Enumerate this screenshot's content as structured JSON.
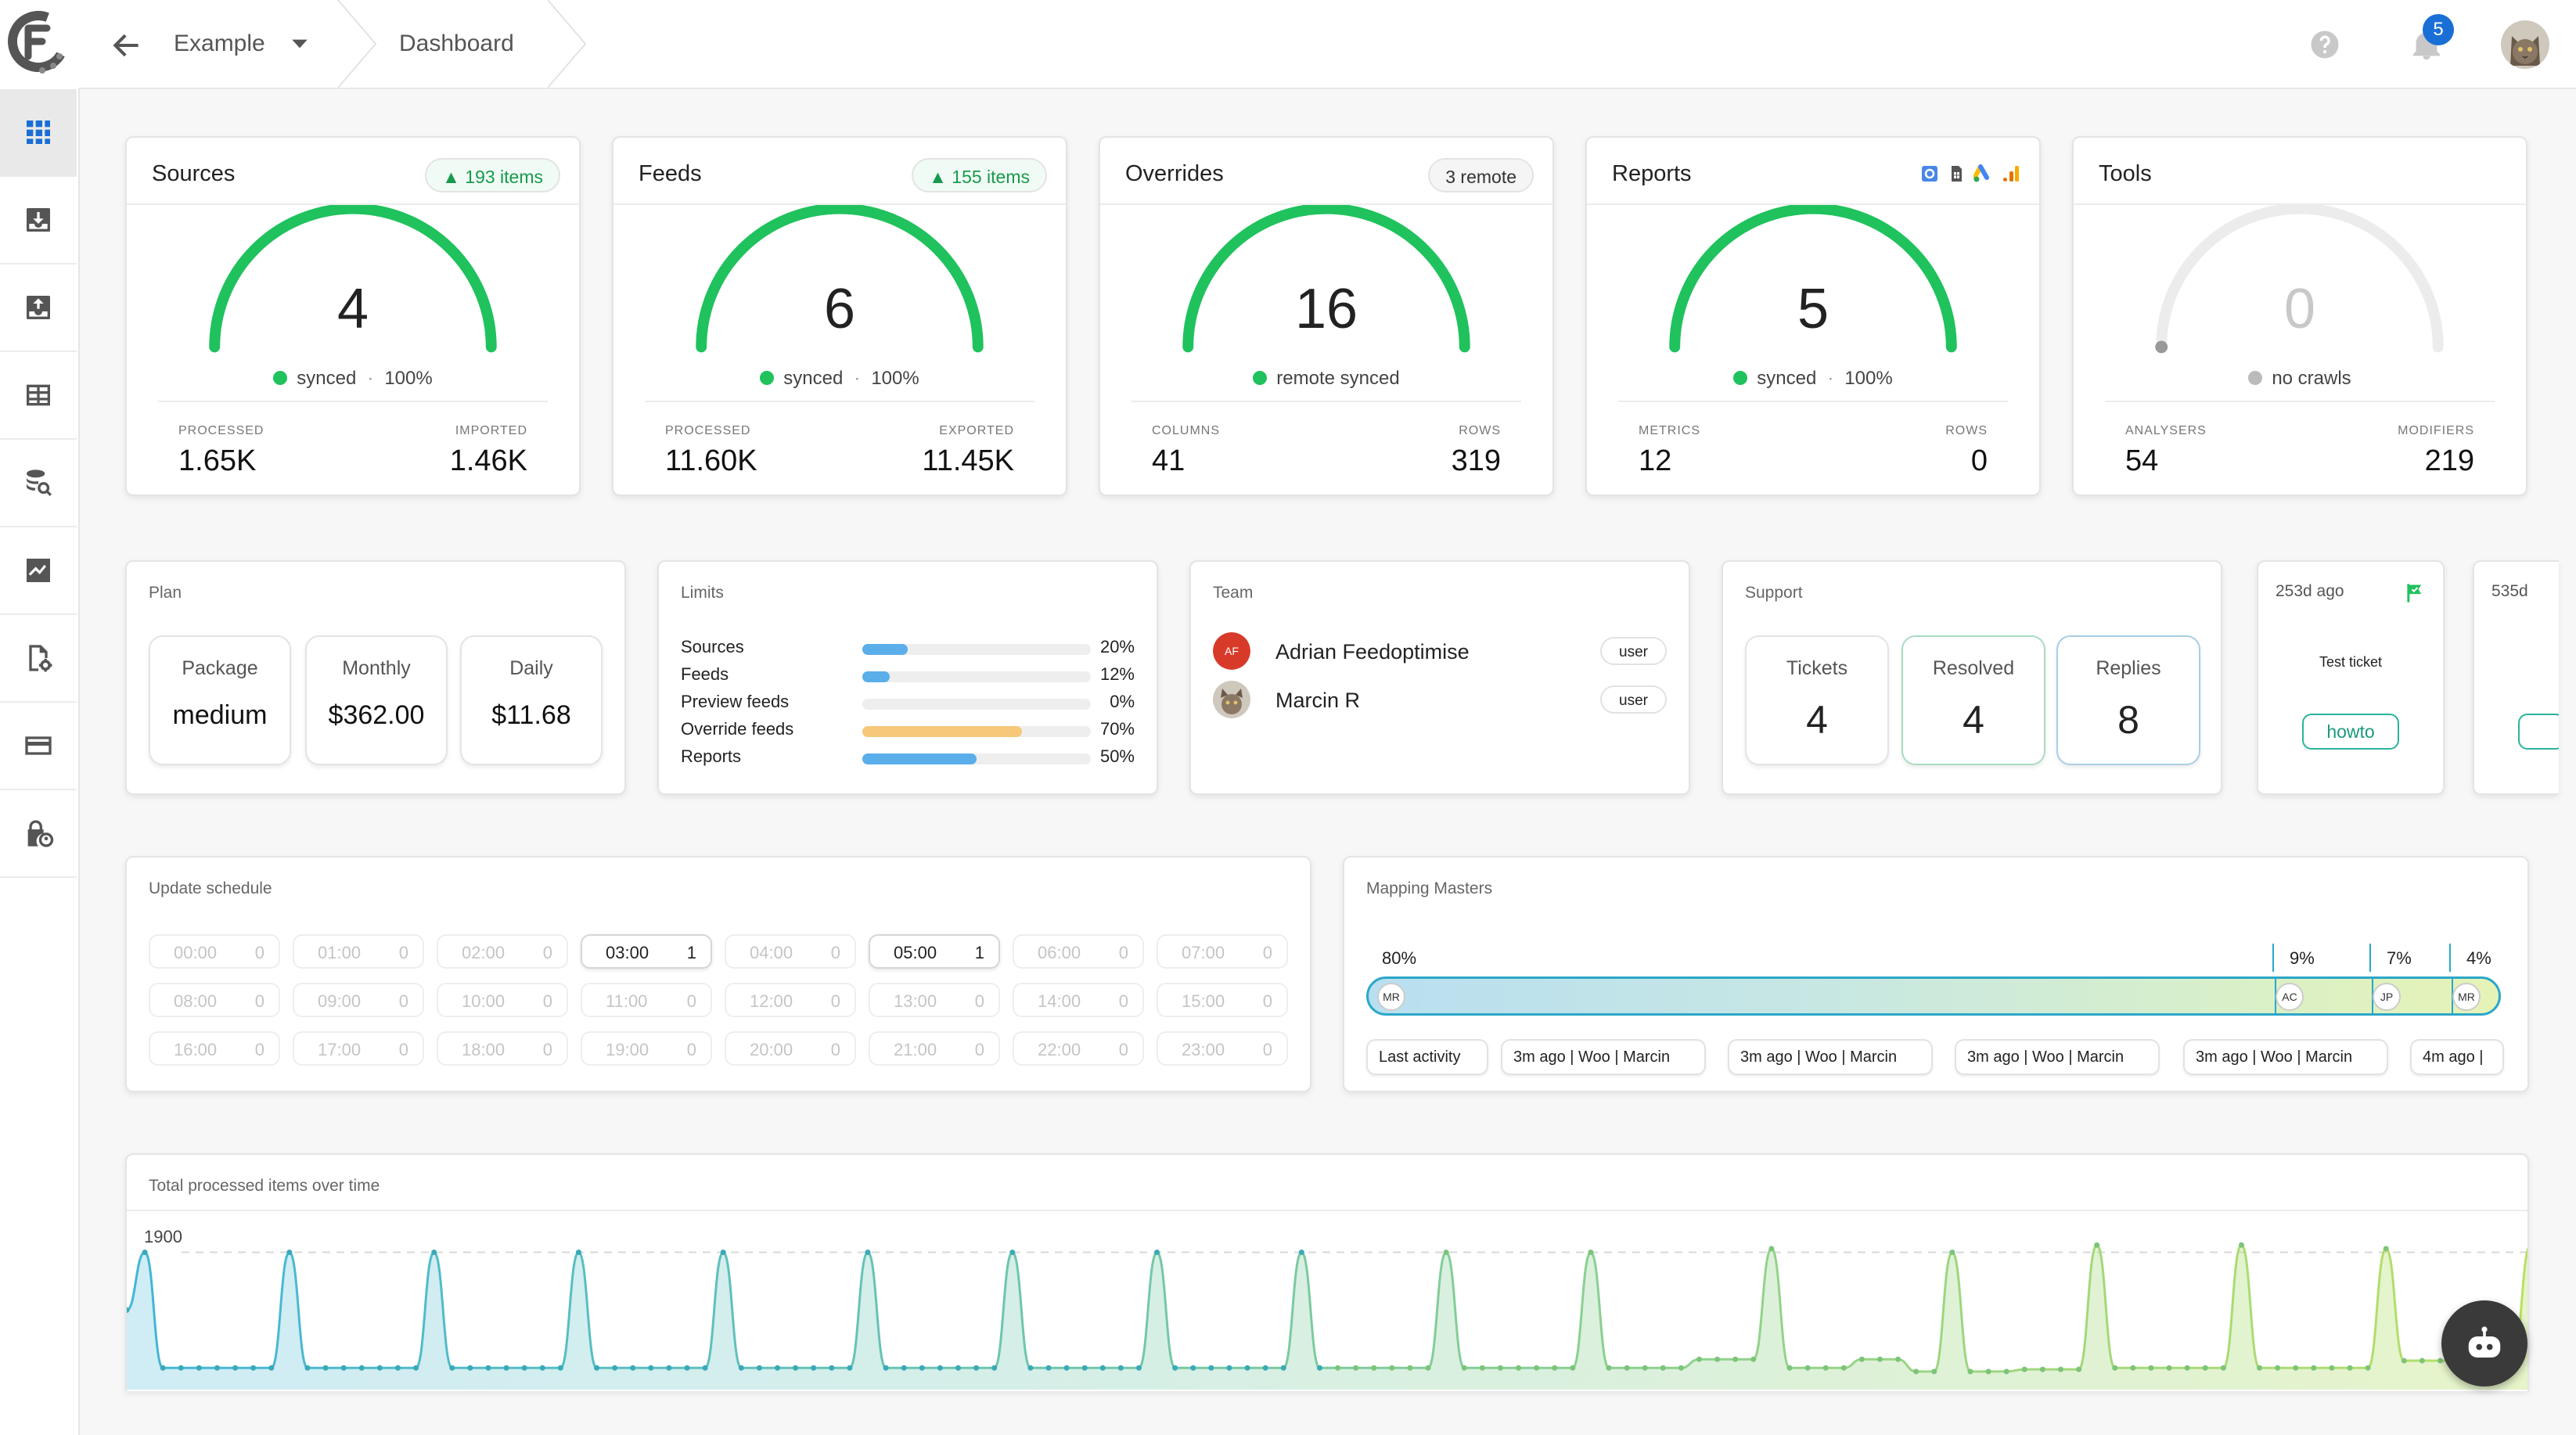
{
  "topbar": {
    "project": "Example",
    "page": "Dashboard",
    "notifications_count": "5"
  },
  "sidebar": {
    "items": [
      {
        "icon": "grid-icon",
        "active": true
      },
      {
        "icon": "download-box-icon"
      },
      {
        "icon": "upload-box-icon"
      },
      {
        "icon": "table-icon"
      },
      {
        "icon": "database-search-icon"
      },
      {
        "icon": "chart-trend-icon"
      },
      {
        "icon": "file-settings-icon"
      },
      {
        "icon": "card-icon"
      },
      {
        "icon": "lock-account-icon"
      }
    ]
  },
  "cards": {
    "sources": {
      "title": "Sources",
      "badge": "▲ 193 items",
      "value": "4",
      "gauge_fraction": 1.0,
      "status": "synced",
      "pct": "100%",
      "left_label": "PROCESSED",
      "left_value": "1.65K",
      "right_label": "IMPORTED",
      "right_value": "1.46K"
    },
    "feeds": {
      "title": "Feeds",
      "badge": "▲ 155 items",
      "value": "6",
      "gauge_fraction": 1.0,
      "status": "synced",
      "pct": "100%",
      "left_label": "PROCESSED",
      "left_value": "11.60K",
      "right_label": "EXPORTED",
      "right_value": "11.45K"
    },
    "overrides": {
      "title": "Overrides",
      "badge": "3 remote",
      "value": "16",
      "gauge_fraction": 1.0,
      "status": "remote synced",
      "left_label": "COLUMNS",
      "left_value": "41",
      "right_label": "ROWS",
      "right_value": "319"
    },
    "reports": {
      "title": "Reports",
      "icons": [
        "looker-studio-icon",
        "sheets-icon",
        "google-ads-icon",
        "analytics-icon"
      ],
      "value": "5",
      "gauge_fraction": 1.0,
      "status": "synced",
      "pct": "100%",
      "left_label": "METRICS",
      "left_value": "12",
      "right_label": "ROWS",
      "right_value": "0"
    },
    "tools": {
      "title": "Tools",
      "value": "0",
      "gauge_fraction": 0.0,
      "status": "no crawls",
      "left_label": "ANALYSERS",
      "left_value": "54",
      "right_label": "MODIFIERS",
      "right_value": "219"
    }
  },
  "plan": {
    "title": "Plan",
    "package_label": "Package",
    "package_value": "medium",
    "monthly_label": "Monthly",
    "monthly_value": "$362.00",
    "daily_label": "Daily",
    "daily_value": "$11.68"
  },
  "limits": {
    "title": "Limits",
    "rows": [
      {
        "name": "Sources",
        "pct": "20%",
        "fraction": 0.2,
        "color": "#5aaeea"
      },
      {
        "name": "Feeds",
        "pct": "12%",
        "fraction": 0.12,
        "color": "#5aaeea"
      },
      {
        "name": "Preview feeds",
        "pct": "0%",
        "fraction": 0.0,
        "color": "#5aaeea"
      },
      {
        "name": "Override feeds",
        "pct": "70%",
        "fraction": 0.7,
        "color": "#f7c77a"
      },
      {
        "name": "Reports",
        "pct": "50%",
        "fraction": 0.5,
        "color": "#5aaeea"
      }
    ]
  },
  "team": {
    "title": "Team",
    "members": [
      {
        "initials": "AF",
        "name": "Adrian Feedoptimise",
        "role": "user"
      },
      {
        "name": "Marcin R",
        "role": "user"
      }
    ]
  },
  "support": {
    "title": "Support",
    "tickets_label": "Tickets",
    "tickets_value": "4",
    "resolved_label": "Resolved",
    "resolved_value": "4",
    "replies_label": "Replies",
    "replies_value": "8"
  },
  "tickets": [
    {
      "date": "253d ago",
      "title": "Test ticket",
      "tag": "howto"
    },
    {
      "date": "535d"
    }
  ],
  "schedule": {
    "title": "Update schedule",
    "slots": [
      {
        "time": "00:00",
        "count": "0"
      },
      {
        "time": "01:00",
        "count": "0"
      },
      {
        "time": "02:00",
        "count": "0"
      },
      {
        "time": "03:00",
        "count": "1",
        "on": true
      },
      {
        "time": "04:00",
        "count": "0"
      },
      {
        "time": "05:00",
        "count": "1",
        "on": true
      },
      {
        "time": "06:00",
        "count": "0"
      },
      {
        "time": "07:00",
        "count": "0"
      },
      {
        "time": "08:00",
        "count": "0"
      },
      {
        "time": "09:00",
        "count": "0"
      },
      {
        "time": "10:00",
        "count": "0"
      },
      {
        "time": "11:00",
        "count": "0"
      },
      {
        "time": "12:00",
        "count": "0"
      },
      {
        "time": "13:00",
        "count": "0"
      },
      {
        "time": "14:00",
        "count": "0"
      },
      {
        "time": "15:00",
        "count": "0"
      },
      {
        "time": "16:00",
        "count": "0"
      },
      {
        "time": "17:00",
        "count": "0"
      },
      {
        "time": "18:00",
        "count": "0"
      },
      {
        "time": "19:00",
        "count": "0"
      },
      {
        "time": "20:00",
        "count": "0"
      },
      {
        "time": "21:00",
        "count": "0"
      },
      {
        "time": "22:00",
        "count": "0"
      },
      {
        "time": "23:00",
        "count": "0"
      }
    ]
  },
  "mapping": {
    "title": "Mapping Masters",
    "segments": [
      {
        "pct": "80%",
        "initials": "MR"
      },
      {
        "pct": "9%",
        "initials": "AC"
      },
      {
        "pct": "7%",
        "initials": "JP"
      },
      {
        "pct": "4%",
        "initials": "MR"
      }
    ],
    "activity": [
      "Last activity",
      "3m ago |  Woo  | Marcin",
      "3m ago |  Woo  | Marcin",
      "3m ago |  Woo  | Marcin",
      "3m ago |  Woo  | Marcin",
      "4m ago |"
    ]
  },
  "chart": {
    "title": "Total processed items over time",
    "y_tick": "1900"
  },
  "chart_data": {
    "type": "area",
    "title": "Total processed items over time",
    "y_reference_line": 1900,
    "values": [
      1100,
      1900,
      300,
      300,
      300,
      300,
      300,
      300,
      300,
      1900,
      300,
      300,
      300,
      300,
      300,
      300,
      300,
      1900,
      300,
      300,
      300,
      300,
      300,
      300,
      300,
      1900,
      300,
      300,
      300,
      300,
      300,
      300,
      300,
      1900,
      300,
      300,
      300,
      300,
      300,
      300,
      300,
      1900,
      300,
      300,
      300,
      300,
      300,
      300,
      300,
      1900,
      300,
      300,
      300,
      300,
      300,
      300,
      300,
      1900,
      300,
      300,
      300,
      300,
      300,
      300,
      300,
      1900,
      300,
      300,
      300,
      300,
      300,
      300,
      300,
      1900,
      300,
      300,
      300,
      300,
      300,
      300,
      300,
      1900,
      300,
      300,
      300,
      300,
      300,
      420,
      420,
      420,
      420,
      1950,
      300,
      300,
      300,
      300,
      420,
      420,
      420,
      250,
      250,
      1900,
      250,
      250,
      250,
      280,
      280,
      280,
      280,
      2000,
      300,
      300,
      300,
      300,
      300,
      300,
      300,
      2000,
      300,
      300,
      300,
      300,
      300,
      300,
      300,
      1950,
      400,
      400,
      400,
      400,
      400,
      400,
      400,
      2000
    ],
    "ylim": [
      0,
      2100
    ],
    "colors": {
      "start": "#41b6d8",
      "end": "#b9e065"
    }
  },
  "colors": {
    "accent_green": "#1fc25c",
    "gauge_track": "#ececec",
    "brand_blue": "#1a6fd6",
    "teal": "#2ba7c9"
  }
}
